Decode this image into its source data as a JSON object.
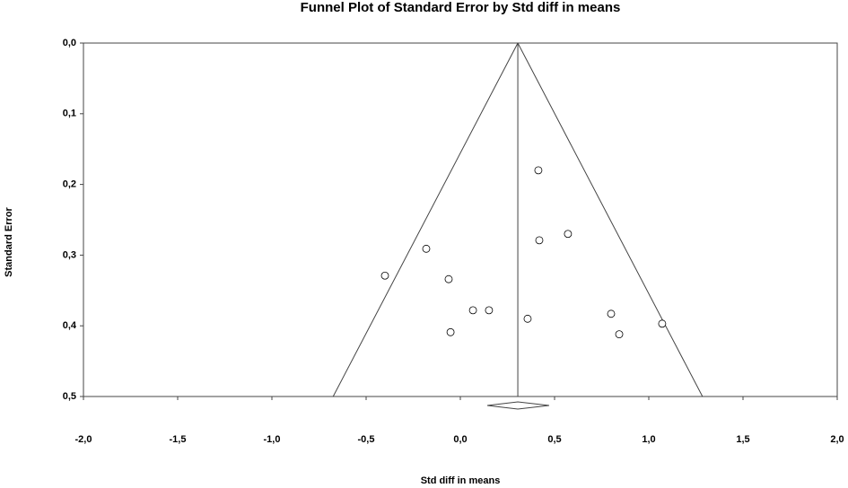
{
  "chart_data": {
    "type": "funnel",
    "title": "Funnel Plot of Standard Error by Std diff in means",
    "x_label": "Std diff in means",
    "y_label": "Standard Error",
    "x": [
      0.414,
      0.419,
      0.571,
      -0.181,
      -0.4,
      -0.062,
      0.067,
      0.152,
      0.357,
      -0.052,
      0.8,
      0.843,
      1.071
    ],
    "values": [
      0.18,
      0.279,
      0.27,
      0.291,
      0.329,
      0.334,
      0.378,
      0.378,
      0.39,
      0.409,
      0.383,
      0.412,
      0.397
    ],
    "color": "#000000",
    "summary_effect": 0.305,
    "summary_ci": [
      0.143,
      0.471
    ],
    "funnel_limits": [
      -0.675,
      1.285
    ],
    "xlim": [
      -2.0,
      2.0
    ],
    "ylim": [
      0.0,
      0.5
    ],
    "y_inverted": true,
    "xticks": [
      {
        "value": -2.0,
        "label": "-2,0"
      },
      {
        "value": -1.5,
        "label": "-1,5"
      },
      {
        "value": -1.0,
        "label": "-1,0"
      },
      {
        "value": -0.5,
        "label": "-0,5"
      },
      {
        "value": 0.0,
        "label": "0,0"
      },
      {
        "value": 0.5,
        "label": "0,5"
      },
      {
        "value": 1.0,
        "label": "1,0"
      },
      {
        "value": 1.5,
        "label": "1,5"
      },
      {
        "value": 2.0,
        "label": "2,0"
      }
    ],
    "yticks": [
      {
        "value": 0.0,
        "label": "0,0"
      },
      {
        "value": 0.1,
        "label": "0,1"
      },
      {
        "value": 0.2,
        "label": "0,2"
      },
      {
        "value": 0.3,
        "label": "0,3"
      },
      {
        "value": 0.4,
        "label": "0,4"
      },
      {
        "value": 0.5,
        "label": "0,5"
      }
    ]
  }
}
